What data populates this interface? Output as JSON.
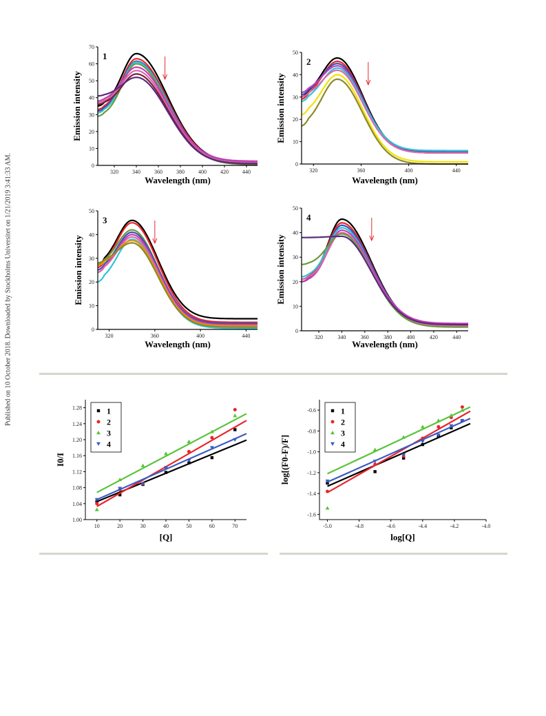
{
  "side_note": "Published on 10 October 2018. Downloaded by Stockholms Universitet on 1/21/2019 3:41:33 AM.",
  "chart_data": [
    {
      "type": "line",
      "panel_label": "1",
      "xlabel": "Wavelength (nm)",
      "ylabel": "Emission intensity",
      "xlim": [
        305,
        450
      ],
      "ylim": [
        0,
        70
      ],
      "xticks": [
        320,
        340,
        360,
        380,
        400,
        420,
        440
      ],
      "yticks": [
        0,
        10,
        20,
        30,
        40,
        50,
        60,
        70
      ],
      "peak_x": 340,
      "width_left": 18,
      "width_right": 40,
      "arrow_x": 366,
      "series": [
        {
          "color": "#000000",
          "peak": 66,
          "tail": 2,
          "start": 35
        },
        {
          "color": "#e8262b",
          "peak": 63,
          "tail": 2,
          "start": 33
        },
        {
          "color": "#3e50b4",
          "peak": 61.5,
          "tail": 1.5,
          "start": 32
        },
        {
          "color": "#2ec4d8",
          "peak": 61,
          "tail": 1,
          "start": 31
        },
        {
          "color": "#6a9a3a",
          "peak": 60,
          "tail": 0.5,
          "start": 29
        },
        {
          "color": "#c23fb9",
          "peak": 58,
          "tail": 2.5,
          "start": 38
        },
        {
          "color": "#d96aa8",
          "peak": 56,
          "tail": 1.5,
          "start": 37
        },
        {
          "color": "#7a1e3a",
          "peak": 54,
          "tail": 1,
          "start": 36
        },
        {
          "color": "#5a2a7a",
          "peak": 52,
          "tail": 1,
          "start": 41
        }
      ]
    },
    {
      "type": "line",
      "panel_label": "2",
      "xlabel": "Wavelength (nm)",
      "ylabel": "Emission intensity",
      "xlim": [
        310,
        450
      ],
      "ylim": [
        0,
        50
      ],
      "xticks": [
        320,
        360,
        400,
        440
      ],
      "yticks": [
        0,
        10,
        20,
        30,
        40,
        50
      ],
      "peak_x": 340,
      "width_left": 18,
      "width_right": 30,
      "arrow_x": 366,
      "series": [
        {
          "color": "#000000",
          "peak": 47.5,
          "tail": 5,
          "start": 30
        },
        {
          "color": "#e8262b",
          "peak": 46,
          "tail": 5,
          "start": 29
        },
        {
          "color": "#3e50b4",
          "peak": 45,
          "tail": 5.5,
          "start": 31
        },
        {
          "color": "#c23fb9",
          "peak": 44,
          "tail": 5,
          "start": 32
        },
        {
          "color": "#2ec4d8",
          "peak": 43,
          "tail": 6,
          "start": 28
        },
        {
          "color": "#d96aa8",
          "peak": 42,
          "tail": 5,
          "start": 30
        },
        {
          "color": "#f2e200",
          "peak": 40,
          "tail": 1,
          "start": 22
        },
        {
          "color": "#8a8a2a",
          "peak": 38,
          "tail": 0,
          "start": 17
        }
      ]
    },
    {
      "type": "line",
      "panel_label": "3",
      "xlabel": "Wavelength (nm)",
      "ylabel": "Emission intensity",
      "xlim": [
        310,
        450
      ],
      "ylim": [
        0,
        50
      ],
      "xticks": [
        320,
        360,
        400,
        440
      ],
      "yticks": [
        0,
        10,
        20,
        30,
        40,
        50
      ],
      "peak_x": 340,
      "width_left": 18,
      "width_right": 32,
      "arrow_x": 360,
      "series": [
        {
          "color": "#000000",
          "peak": 46,
          "tail": 4.5,
          "start": 27
        },
        {
          "color": "#e8262b",
          "peak": 45,
          "tail": 3,
          "start": 26
        },
        {
          "color": "#6a9a3a",
          "peak": 42,
          "tail": 2,
          "start": 27
        },
        {
          "color": "#3e50b4",
          "peak": 41,
          "tail": 2.5,
          "start": 25
        },
        {
          "color": "#c23fb9",
          "peak": 40,
          "tail": 2,
          "start": 24
        },
        {
          "color": "#d96aa8",
          "peak": 39,
          "tail": 1.5,
          "start": 24
        },
        {
          "color": "#2ec4d8",
          "peak": 38,
          "tail": 0.5,
          "start": 20
        },
        {
          "color": "#f29000",
          "peak": 37.5,
          "tail": 1.5,
          "start": 27
        },
        {
          "color": "#8a8a2a",
          "peak": 36.5,
          "tail": 1,
          "start": 28
        }
      ]
    },
    {
      "type": "line",
      "panel_label": "4",
      "xlabel": "Wavelength (nm)",
      "ylabel": "Emission intensity",
      "xlim": [
        305,
        450
      ],
      "ylim": [
        0,
        50
      ],
      "xticks": [
        320,
        340,
        360,
        380,
        400,
        420,
        440
      ],
      "yticks": [
        0,
        10,
        20,
        30,
        40,
        50
      ],
      "peak_x": 340,
      "width_left": 17,
      "width_right": 36,
      "arrow_x": 366,
      "series": [
        {
          "color": "#000000",
          "peak": 45.5,
          "tail": 2,
          "start": 20
        },
        {
          "color": "#e8262b",
          "peak": 44,
          "tail": 2,
          "start": 21
        },
        {
          "color": "#3e50b4",
          "peak": 43,
          "tail": 2.5,
          "start": 20
        },
        {
          "color": "#2ec4d8",
          "peak": 42,
          "tail": 2,
          "start": 22
        },
        {
          "color": "#c23fb9",
          "peak": 41,
          "tail": 3,
          "start": 20
        },
        {
          "color": "#d96aa8",
          "peak": 40,
          "tail": 2,
          "start": 21
        },
        {
          "color": "#6a9a3a",
          "peak": 39.5,
          "tail": 1.5,
          "start": 27
        },
        {
          "color": "#5a2a7a",
          "peak": 38.5,
          "tail": 2.5,
          "start": 38
        }
      ]
    },
    {
      "type": "scatter",
      "xlabel": "[Q]",
      "ylabel": "I0/I",
      "xlim": [
        5,
        75
      ],
      "ylim": [
        1.0,
        1.3
      ],
      "xticks": [
        10,
        20,
        30,
        40,
        50,
        60,
        70
      ],
      "yticks": [
        1.0,
        1.04,
        1.08,
        1.12,
        1.16,
        1.2,
        1.24,
        1.28
      ],
      "ytick_labels": [
        "1.00",
        "1.04",
        "1.08",
        "1.12",
        "1.16",
        "1.20",
        "1.24",
        "1.28"
      ],
      "fit_x": [
        10,
        75
      ],
      "series": [
        {
          "name": "1",
          "color": "#000000",
          "marker": "square",
          "x": [
            10,
            20,
            30,
            40,
            50,
            60,
            70
          ],
          "y": [
            1.045,
            1.062,
            1.088,
            1.118,
            1.142,
            1.155,
            1.225
          ],
          "fit": [
            1.045,
            1.199
          ]
        },
        {
          "name": "2",
          "color": "#e8262b",
          "marker": "circle",
          "x": [
            10,
            20,
            30,
            40,
            50,
            60,
            70
          ],
          "y": [
            1.04,
            1.075,
            1.09,
            1.13,
            1.17,
            1.205,
            1.275
          ],
          "fit": [
            1.033,
            1.248
          ]
        },
        {
          "name": "3",
          "color": "#58c43a",
          "marker": "triangle-up",
          "x": [
            10,
            20,
            30,
            40,
            50,
            60,
            70
          ],
          "y": [
            1.025,
            1.1,
            1.135,
            1.165,
            1.195,
            1.22,
            1.26
          ],
          "fit": [
            1.068,
            1.265
          ]
        },
        {
          "name": "4",
          "color": "#3d5bc4",
          "marker": "triangle-down",
          "x": [
            10,
            20,
            30,
            40,
            50,
            60,
            70
          ],
          "y": [
            1.05,
            1.078,
            1.09,
            1.13,
            1.148,
            1.18,
            1.2
          ],
          "fit": [
            1.05,
            1.215
          ]
        }
      ],
      "legend": "top-left"
    },
    {
      "type": "scatter",
      "xlabel": "log[Q]",
      "ylabel": "log[(F0-F)/F]",
      "xlim": [
        -5.05,
        -4.0
      ],
      "ylim": [
        -1.65,
        -0.5
      ],
      "xticks": [
        -5.0,
        -4.8,
        -4.6,
        -4.4,
        -4.2,
        -4.0
      ],
      "xtick_labels": [
        "-5.0",
        "-4.8",
        "-4.6",
        "-4.4",
        "-4.2",
        "-4.0"
      ],
      "yticks": [
        -1.6,
        -1.4,
        -1.2,
        -1.0,
        -0.8,
        -0.6
      ],
      "ytick_labels": [
        "-1.6",
        "-1.4",
        "-1.2",
        "-1.0",
        "-0.8",
        "-0.6"
      ],
      "fit_x": [
        -5.0,
        -4.1
      ],
      "series": [
        {
          "name": "1",
          "color": "#000000",
          "marker": "square",
          "x": [
            -5.0,
            -4.7,
            -4.52,
            -4.4,
            -4.3,
            -4.22,
            -4.15
          ],
          "y": [
            -1.3,
            -1.19,
            -1.06,
            -0.93,
            -0.85,
            -0.77,
            -0.7
          ],
          "fit": [
            -1.33,
            -0.73
          ]
        },
        {
          "name": "2",
          "color": "#e8262b",
          "marker": "circle",
          "x": [
            -5.0,
            -4.7,
            -4.52,
            -4.4,
            -4.3,
            -4.22,
            -4.15
          ],
          "y": [
            -1.38,
            -1.12,
            -1.04,
            -0.87,
            -0.76,
            -0.67,
            -0.57
          ],
          "fit": [
            -1.39,
            -0.61
          ]
        },
        {
          "name": "3",
          "color": "#58c43a",
          "marker": "triangle-up",
          "x": [
            -5.0,
            -4.7,
            -4.52,
            -4.4,
            -4.3,
            -4.22,
            -4.15
          ],
          "y": [
            -1.54,
            -0.98,
            -0.86,
            -0.76,
            -0.7,
            -0.65,
            -0.6
          ],
          "fit": [
            -1.21,
            -0.57
          ]
        },
        {
          "name": "4",
          "color": "#3d5bc4",
          "marker": "triangle-down",
          "x": [
            -5.0,
            -4.7,
            -4.52,
            -4.4,
            -4.3,
            -4.22,
            -4.15
          ],
          "y": [
            -1.28,
            -1.09,
            -1.03,
            -0.9,
            -0.84,
            -0.75,
            -0.7
          ],
          "fit": [
            -1.29,
            -0.68
          ]
        }
      ],
      "legend": "top-left"
    }
  ]
}
